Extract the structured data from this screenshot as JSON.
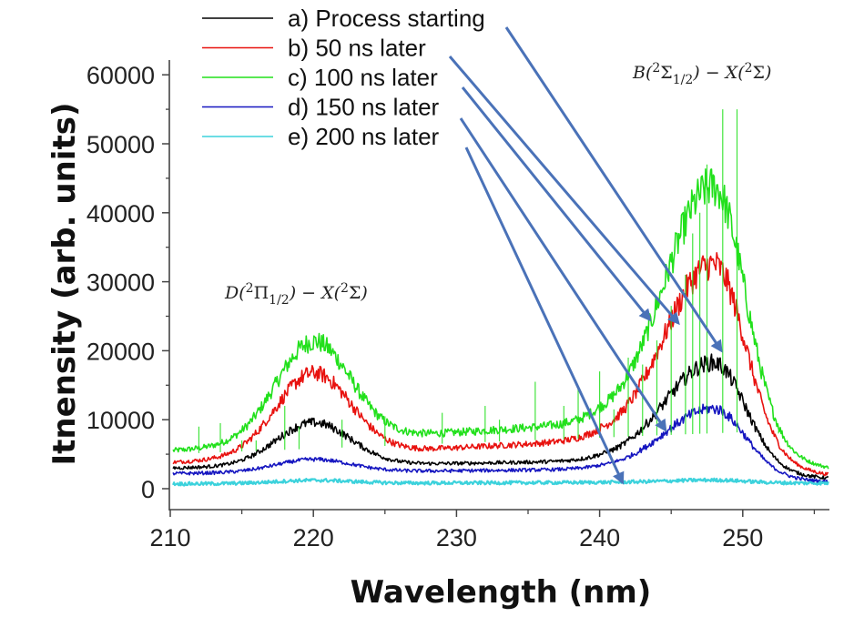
{
  "chart_data": {
    "type": "line",
    "title": "",
    "xlabel": "Wavelength (nm)",
    "ylabel": "Itnensity (arb. units)",
    "xlim": [
      210,
      256
    ],
    "ylim": [
      -3000,
      63500
    ],
    "xticks": [
      210,
      220,
      230,
      240,
      250
    ],
    "xminor": [
      215,
      225,
      235,
      245,
      255
    ],
    "yticks": [
      0,
      10000,
      20000,
      30000,
      40000,
      50000,
      60000
    ],
    "yminor": [
      5000,
      15000,
      25000,
      35000,
      45000,
      55000
    ],
    "xtick_labels": [
      "210",
      "220",
      "230",
      "240",
      "250"
    ],
    "ytick_labels": [
      "0",
      "10000",
      "20000",
      "30000",
      "40000",
      "50000",
      "60000"
    ],
    "grid": false,
    "legend_position": "top-left",
    "annotations": [
      {
        "text_main": "D(",
        "sup": "2",
        "sym": "Π",
        "sub": "1/2",
        "rest": ") − X(",
        "sup2": "2",
        "sym2": "Σ",
        "end": ")",
        "near_x": 220
      },
      {
        "text_main": "B(",
        "sup": "2",
        "sym": "Σ",
        "sub": "1/2",
        "rest": ") − X(",
        "sup2": "2",
        "sym2": "Σ",
        "end": ")",
        "near_x": 248
      }
    ],
    "series": [
      {
        "name": "a) Process starting",
        "color": "#000000",
        "baseline_start": 3000,
        "baseline_mid": 4000,
        "baseline_end": 1500,
        "peak1": {
          "x": 220,
          "y": 9500
        },
        "peak2": {
          "x": 248,
          "y": 19500
        },
        "arrow_to": {
          "x": 248.5,
          "y": 20000
        }
      },
      {
        "name": "b) 50 ns later",
        "color": "#e8120f",
        "baseline_start": 3800,
        "baseline_mid": 7000,
        "baseline_end": 2000,
        "peak1": {
          "x": 220,
          "y": 16500
        },
        "peak2": {
          "x": 248,
          "y": 35000
        },
        "arrow_to": {
          "x": 245.5,
          "y": 24000
        }
      },
      {
        "name": "c) 100 ns later",
        "color": "#22e01c",
        "baseline_start": 5500,
        "baseline_mid": 9500,
        "baseline_end": 3000,
        "peak1": {
          "x": 220,
          "y": 21000
        },
        "peak2": {
          "x": 248,
          "y": 47000
        },
        "arrow_to": {
          "x": 243.5,
          "y": 24500
        }
      },
      {
        "name": "d) 150 ns later",
        "color": "#1616c0",
        "baseline_start": 2200,
        "baseline_mid": 2800,
        "baseline_end": 1000,
        "peak1": {
          "x": 220,
          "y": 4200
        },
        "peak2": {
          "x": 248,
          "y": 12500
        },
        "arrow_to": {
          "x": 244.6,
          "y": 8500
        }
      },
      {
        "name": "e) 200 ns later",
        "color": "#3cd2dc",
        "baseline_start": 700,
        "baseline_mid": 900,
        "baseline_end": 800,
        "peak1": {
          "x": 220,
          "y": 1200
        },
        "peak2": {
          "x": 248,
          "y": 1300
        },
        "arrow_to": {
          "x": 241.6,
          "y": 900
        }
      }
    ],
    "arrow_color": "#4a72b8"
  }
}
